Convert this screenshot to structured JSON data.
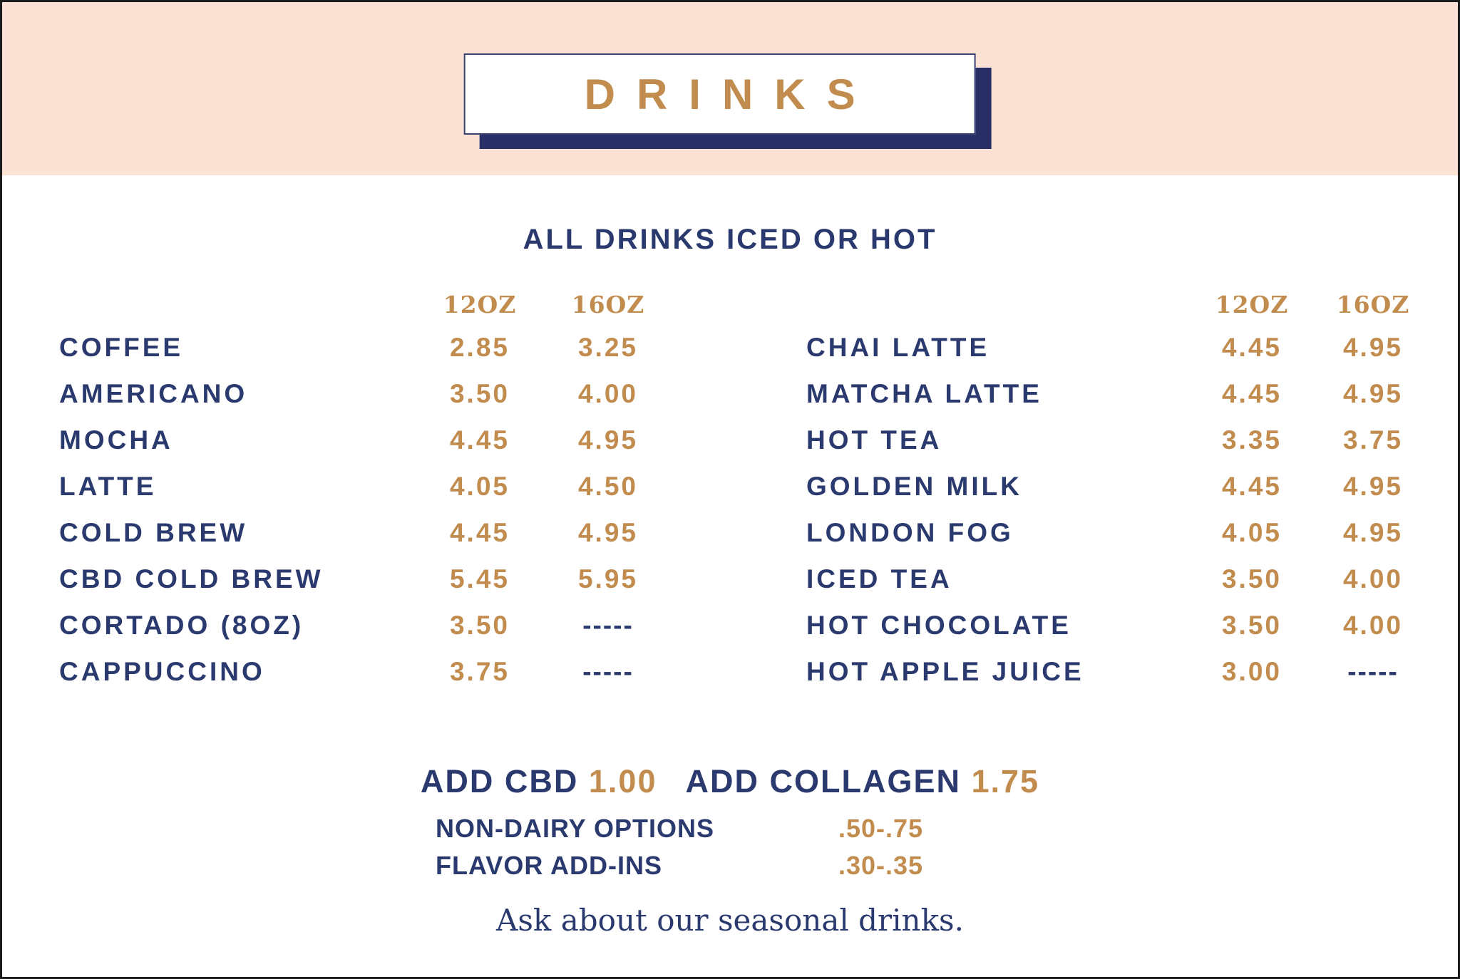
{
  "page": {
    "title": "DRINKS",
    "subtitle": "ALL DRINKS ICED OR HOT",
    "colors": {
      "peach_band": "#fbe2d5",
      "navy": "#2b3a6e",
      "gold": "#c18c4e",
      "shadow_navy": "#272f66",
      "box_background": "#ffffff"
    }
  },
  "menu": {
    "size_headers": [
      "12OZ",
      "16OZ"
    ],
    "left_items": [
      {
        "name": "COFFEE",
        "p12": "2.85",
        "p16": "3.25"
      },
      {
        "name": "AMERICANO",
        "p12": "3.50",
        "p16": "4.00"
      },
      {
        "name": "MOCHA",
        "p12": "4.45",
        "p16": "4.95"
      },
      {
        "name": "LATTE",
        "p12": "4.05",
        "p16": "4.50"
      },
      {
        "name": "COLD BREW",
        "p12": "4.45",
        "p16": "4.95"
      },
      {
        "name": "CBD COLD BREW",
        "p12": "5.45",
        "p16": "5.95"
      },
      {
        "name": "CORTADO (8OZ)",
        "p12": "3.50",
        "p16": "-----"
      },
      {
        "name": "CAPPUCCINO",
        "p12": "3.75",
        "p16": "-----"
      }
    ],
    "right_items": [
      {
        "name": "CHAI LATTE",
        "p12": "4.45",
        "p16": "4.95"
      },
      {
        "name": "MATCHA LATTE",
        "p12": "4.45",
        "p16": "4.95"
      },
      {
        "name": "HOT TEA",
        "p12": "3.35",
        "p16": "3.75"
      },
      {
        "name": "GOLDEN MILK",
        "p12": "4.45",
        "p16": "4.95"
      },
      {
        "name": "LONDON FOG",
        "p12": "4.05",
        "p16": "4.95"
      },
      {
        "name": "ICED TEA",
        "p12": "3.50",
        "p16": "4.00"
      },
      {
        "name": "HOT CHOCOLATE",
        "p12": "3.50",
        "p16": "4.00"
      },
      {
        "name": "HOT APPLE JUICE",
        "p12": "3.00",
        "p16": "-----"
      }
    ]
  },
  "addons": {
    "inline": [
      {
        "label": "ADD CBD",
        "price": "1.00"
      },
      {
        "label": "ADD COLLAGEN",
        "price": "1.75"
      }
    ],
    "rows": [
      {
        "label": "NON-DAIRY OPTIONS",
        "price": ".50-.75"
      },
      {
        "label": "FLAVOR ADD-INS",
        "price": ".30-.35"
      }
    ],
    "note": "Ask about our seasonal drinks."
  }
}
